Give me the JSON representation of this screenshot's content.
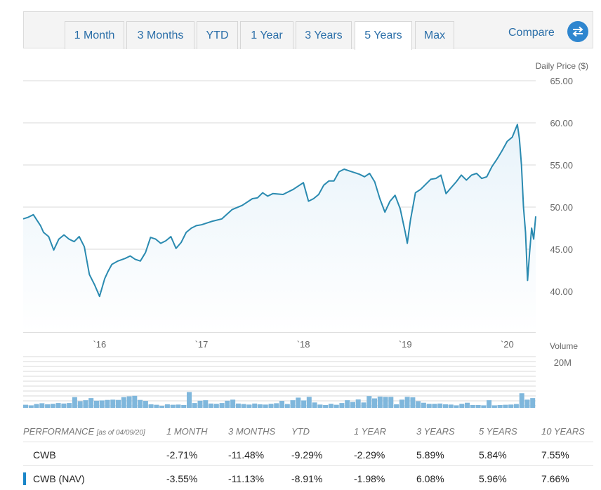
{
  "tabs": [
    {
      "label": "1 Month",
      "active": false
    },
    {
      "label": "3 Months",
      "active": false
    },
    {
      "label": "YTD",
      "active": false
    },
    {
      "label": "1 Year",
      "active": false
    },
    {
      "label": "3 Years",
      "active": false
    },
    {
      "label": "5 Years",
      "active": true
    },
    {
      "label": "Max",
      "active": false
    }
  ],
  "compare": {
    "label": "Compare",
    "icon": "swap-arrows-icon"
  },
  "colors": {
    "line": "#2a8ab0",
    "area": "#e8f3fa",
    "volume_bar": "#7fb7dc",
    "grid": "#d8d8d8",
    "link": "#2a6ea8"
  },
  "chart_data": [
    {
      "type": "line",
      "ylabel": "Daily Price ($)",
      "ylim": [
        40,
        65
      ],
      "yticks": [
        "65.00",
        "60.00",
        "55.00",
        "50.00",
        "45.00",
        "40.00"
      ],
      "xticks": [
        "`16",
        "`17",
        "`18",
        "`19",
        "`20"
      ],
      "x_range": [
        2015.25,
        2020.28
      ],
      "series": [
        {
          "x": [
            2015.25,
            2015.3,
            2015.35,
            2015.42,
            2015.45,
            2015.5,
            2015.55,
            2015.6,
            2015.65,
            2015.7,
            2015.75,
            2015.8,
            2015.85,
            2015.9,
            2015.95,
            2016.0,
            2016.05,
            2016.08,
            2016.12,
            2016.18,
            2016.25,
            2016.3,
            2016.35,
            2016.4,
            2016.45,
            2016.5,
            2016.55,
            2016.6,
            2016.65,
            2016.7,
            2016.75,
            2016.8,
            2016.85,
            2016.9,
            2016.95,
            2017.0,
            2017.05,
            2017.1,
            2017.2,
            2017.3,
            2017.4,
            2017.5,
            2017.55,
            2017.6,
            2017.65,
            2017.7,
            2017.8,
            2017.9,
            2018.0,
            2018.05,
            2018.1,
            2018.15,
            2018.2,
            2018.25,
            2018.3,
            2018.35,
            2018.4,
            2018.45,
            2018.5,
            2018.55,
            2018.6,
            2018.65,
            2018.7,
            2018.75,
            2018.8,
            2018.85,
            2018.9,
            2018.95,
            2019.0,
            2019.02,
            2019.05,
            2019.1,
            2019.15,
            2019.2,
            2019.25,
            2019.3,
            2019.35,
            2019.4,
            2019.45,
            2019.5,
            2019.55,
            2019.6,
            2019.65,
            2019.7,
            2019.75,
            2019.8,
            2019.85,
            2019.9,
            2019.95,
            2020.0,
            2020.05,
            2020.1,
            2020.12,
            2020.14,
            2020.16,
            2020.18,
            2020.2,
            2020.22,
            2020.24,
            2020.26,
            2020.28
          ],
          "values": [
            48.6,
            48.8,
            49.1,
            47.8,
            47.0,
            46.5,
            44.9,
            46.2,
            46.7,
            46.2,
            45.9,
            46.5,
            45.3,
            42.0,
            40.8,
            39.4,
            41.5,
            42.3,
            43.2,
            43.6,
            43.9,
            44.2,
            43.8,
            43.6,
            44.6,
            46.4,
            46.2,
            45.7,
            46.0,
            46.5,
            45.1,
            45.8,
            47.0,
            47.5,
            47.8,
            47.9,
            48.1,
            48.3,
            48.6,
            49.7,
            50.2,
            51.0,
            51.1,
            51.7,
            51.3,
            51.6,
            51.5,
            52.1,
            52.9,
            50.7,
            51.0,
            51.5,
            52.6,
            53.1,
            53.1,
            54.2,
            54.5,
            54.3,
            54.1,
            53.9,
            53.6,
            54.0,
            53.0,
            51.0,
            49.4,
            50.7,
            51.4,
            49.8,
            47.0,
            45.7,
            48.4,
            51.7,
            52.1,
            52.7,
            53.3,
            53.4,
            53.8,
            51.6,
            52.3,
            53.0,
            53.8,
            53.2,
            53.8,
            54.0,
            53.4,
            53.6,
            54.8,
            55.7,
            56.7,
            57.8,
            58.3,
            59.8,
            58.1,
            55.0,
            50.0,
            47.0,
            41.3,
            44.6,
            47.5,
            46.2,
            48.9
          ]
        }
      ]
    },
    {
      "type": "bar",
      "ylabel": "Volume",
      "yticks": [
        "20M"
      ],
      "ylim": [
        0,
        20
      ],
      "values": [
        1.2,
        1.0,
        1.5,
        1.8,
        1.4,
        1.6,
        1.9,
        1.7,
        1.9,
        4.2,
        2.6,
        3.0,
        3.8,
        2.8,
        2.9,
        3.1,
        3.2,
        3.1,
        4.2,
        4.5,
        4.7,
        3.1,
        2.7,
        1.4,
        1.2,
        0.8,
        1.4,
        1.2,
        1.3,
        1.1,
        6.2,
        1.9,
        2.8,
        3.0,
        1.7,
        1.6,
        1.9,
        2.8,
        3.2,
        1.7,
        1.5,
        1.3,
        1.7,
        1.4,
        1.3,
        1.6,
        1.8,
        2.7,
        1.5,
        3.0,
        4.0,
        2.9,
        4.3,
        2.1,
        1.3,
        1.1,
        1.6,
        1.2,
        1.9,
        3.0,
        2.3,
        3.3,
        2.1,
        4.6,
        3.7,
        4.4,
        4.3,
        4.3,
        1.4,
        3.2,
        4.3,
        4.1,
        2.6,
        2.0,
        1.6,
        1.6,
        1.7,
        1.4,
        1.3,
        1.0,
        1.6,
        2.0,
        1.1,
        1.1,
        1.0,
        3.0,
        1.0,
        1.1,
        1.2,
        1.3,
        1.5,
        5.7,
        3.2,
        3.8
      ]
    }
  ],
  "performance": {
    "header": {
      "label": "PERFORMANCE",
      "as_of": "[as of 04/09/20]",
      "cols": [
        "1 MONTH",
        "3 MONTHS",
        "YTD",
        "1 YEAR",
        "3 YEARS",
        "5 YEARS",
        "10 YEARS"
      ]
    },
    "rows": [
      {
        "name": "CWB",
        "values": [
          "-2.71%",
          "-11.48%",
          "-9.29%",
          "-2.29%",
          "5.89%",
          "5.84%",
          "7.55%"
        ]
      },
      {
        "name": "CWB (NAV)",
        "values": [
          "-3.55%",
          "-11.13%",
          "-8.91%",
          "-1.98%",
          "6.08%",
          "5.96%",
          "7.66%"
        ]
      }
    ]
  }
}
